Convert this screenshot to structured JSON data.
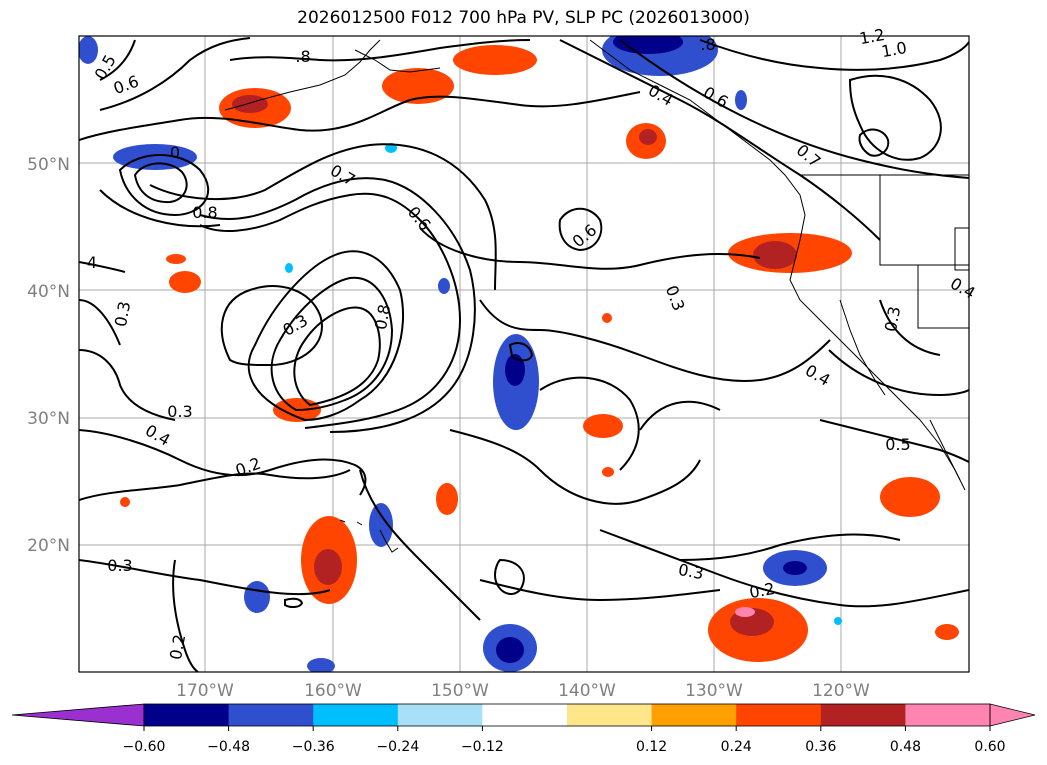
{
  "title": "2026012500 F012 700 hPa PV, SLP PC (2026013000)",
  "lat_labels": [
    "50°N",
    "40°N",
    "30°N",
    "20°N"
  ],
  "lon_labels": [
    "170°W",
    "160°W",
    "150°W",
    "140°W",
    "130°W",
    "120°W"
  ],
  "contour_labels": [
    "0.5",
    "0.6",
    ".8",
    "1.2",
    "1.0",
    ".8",
    "0.4",
    "0.6",
    "0.7",
    "0",
    "0.7",
    "0.8",
    "0.6",
    "0.6",
    "4",
    "0.3",
    "0.3",
    "0.8",
    "0.3",
    "0.3",
    "0.4",
    "0.2",
    "0.3",
    "0.3",
    "0.2",
    "0.4",
    "0.3",
    "0.5",
    "0.2",
    "0.4"
  ],
  "colorbar": {
    "ticks": [
      "−0.60",
      "−0.48",
      "−0.36",
      "−0.24",
      "−0.12",
      "0.12",
      "0.24",
      "0.36",
      "0.48",
      "0.60"
    ],
    "colors": [
      "#7b2fc9",
      "#9b30d0",
      "#00008b",
      "#2f4fcf",
      "#00bfff",
      "#a8e0f8",
      "#ffffff",
      "#ffe68a",
      "#ffa000",
      "#ff4500",
      "#b22222",
      "#ff85b0"
    ]
  }
}
